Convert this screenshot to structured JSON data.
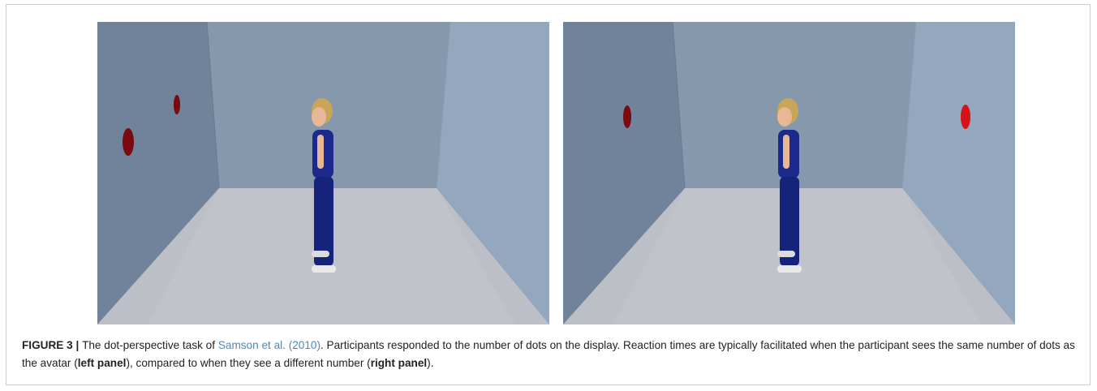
{
  "figure": {
    "panels": [
      {
        "id": "left",
        "dots_on_left_wall": 2,
        "dots_on_right_wall": 0
      },
      {
        "id": "right",
        "dots_on_left_wall": 1,
        "dots_on_right_wall": 1
      }
    ],
    "colors": {
      "back_wall": "#8698ac",
      "left_wall": "#71839a",
      "right_wall": "#93a8bf",
      "floor": "#bcbfc5",
      "dot_dark": "#7b0a10",
      "dot_bright": "#d61218",
      "shirt": "#1b2a8c",
      "pants": "#15237a",
      "hair": "#c9a557",
      "skin": "#e8b896"
    }
  },
  "caption": {
    "label": "FIGURE 3",
    "separator": " | ",
    "text1": "The dot-perspective task of ",
    "citation": "Samson et al. (2010)",
    "text2": ". Participants responded to the number of dots on the display. Reaction times are typically facilitated when the participant sees the same number of dots as the avatar (",
    "bold1": "left panel",
    "text3": "), compared to when they see a different number (",
    "bold2": "right panel",
    "text4": ")."
  }
}
